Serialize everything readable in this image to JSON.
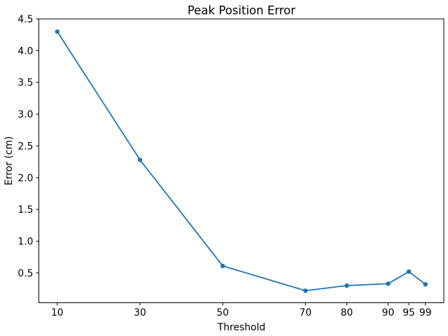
{
  "chart_data": {
    "type": "line",
    "title": "Peak Position Error",
    "xlabel": "Threshold",
    "ylabel": "Error (cm)",
    "x": [
      10,
      30,
      50,
      70,
      80,
      90,
      95,
      99
    ],
    "y": [
      4.3,
      2.28,
      0.61,
      0.22,
      0.3,
      0.33,
      0.52,
      0.32
    ],
    "xtick_labels": [
      "10",
      "30",
      "50",
      "70",
      "80",
      "90",
      "95",
      "99"
    ],
    "yticks": [
      0.5,
      1.0,
      1.5,
      2.0,
      2.5,
      3.0,
      3.5,
      4.0,
      4.5
    ],
    "ytick_labels": [
      "0.5",
      "1.0",
      "1.5",
      "2.0",
      "2.5",
      "3.0",
      "3.5",
      "4.0",
      "4.5"
    ],
    "xlim": [
      5.55,
      103.45
    ],
    "ylim": [
      0.03,
      4.5
    ],
    "grid": false,
    "legend": null,
    "line_color": "#1f77b4",
    "marker": "point",
    "axis_color": "#000000"
  }
}
